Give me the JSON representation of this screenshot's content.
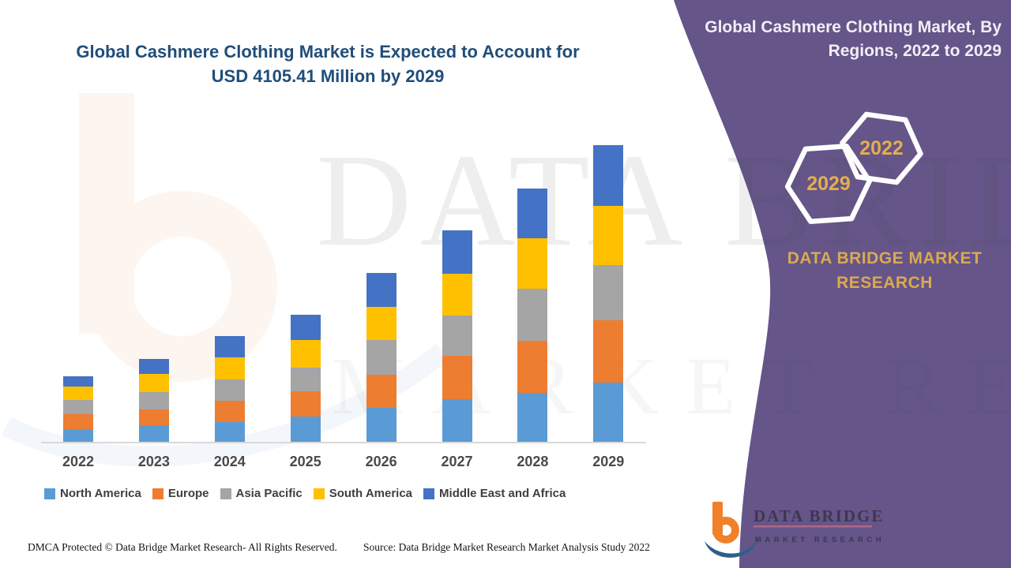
{
  "header": {
    "title_line1": "Global Cashmere Clothing Market is Expected to Account for",
    "title_line2": "USD 4105.41 Million by 2029"
  },
  "sidebar": {
    "title_line1": "Global Cashmere Clothing Market, By",
    "title_line2": "Regions, 2022 to 2029",
    "hexagons": [
      {
        "label": "2022"
      },
      {
        "label": "2029"
      }
    ],
    "brand_line1": "DATA BRIDGE MARKET",
    "brand_line2": "RESEARCH",
    "logo": {
      "title": "DATA BRIDGE",
      "subtitle": "MARKET RESEARCH"
    }
  },
  "watermark": {
    "line1": "DATA BRIDGE",
    "line2": "MARKET RESEARCH"
  },
  "footer": {
    "dmca": "DMCA Protected © Data Bridge Market Research- All Rights Reserved.",
    "source": "Source: Data Bridge Market Research Market Analysis Study 2022"
  },
  "colors": {
    "sidebar_purple": "#655589",
    "accent_gold": "#DCA94F",
    "title_blue": "#1F4E79",
    "axis_gray": "#D9D9D9",
    "label_gray": "#3F3F3F"
  },
  "chart_data": {
    "type": "bar",
    "stacked": true,
    "title": "Global Cashmere Clothing Market is Expected to Account for USD 4105.41 Million by 2029",
    "unit": "USD Million",
    "xlabel": "",
    "ylabel": "",
    "ylim": [
      0,
      4105.41
    ],
    "grid": false,
    "legend_position": "bottom",
    "categories": [
      "2022",
      "2023",
      "2024",
      "2025",
      "2026",
      "2027",
      "2028",
      "2029"
    ],
    "series": [
      {
        "name": "North America",
        "color": "#5B9BD5",
        "values": [
          185,
          240,
          285,
          360,
          480,
          600,
          690,
          830
        ]
      },
      {
        "name": "Europe",
        "color": "#ED7D31",
        "values": [
          205,
          220,
          295,
          350,
          460,
          600,
          720,
          855
        ]
      },
      {
        "name": "Asia Pacific",
        "color": "#A5A5A5",
        "values": [
          195,
          240,
          295,
          330,
          480,
          555,
          710,
          765
        ]
      },
      {
        "name": "South America",
        "color": "#FFC000",
        "values": [
          185,
          250,
          305,
          380,
          450,
          580,
          700,
          820
        ]
      },
      {
        "name": "Middle East and Africa",
        "color": "#4472C4",
        "values": [
          150,
          210,
          290,
          340,
          470,
          590,
          690,
          835.41
        ]
      }
    ],
    "totals": [
      920,
      1160,
      1470,
      1760,
      2340,
      2925,
      3510,
      4105.41
    ]
  }
}
